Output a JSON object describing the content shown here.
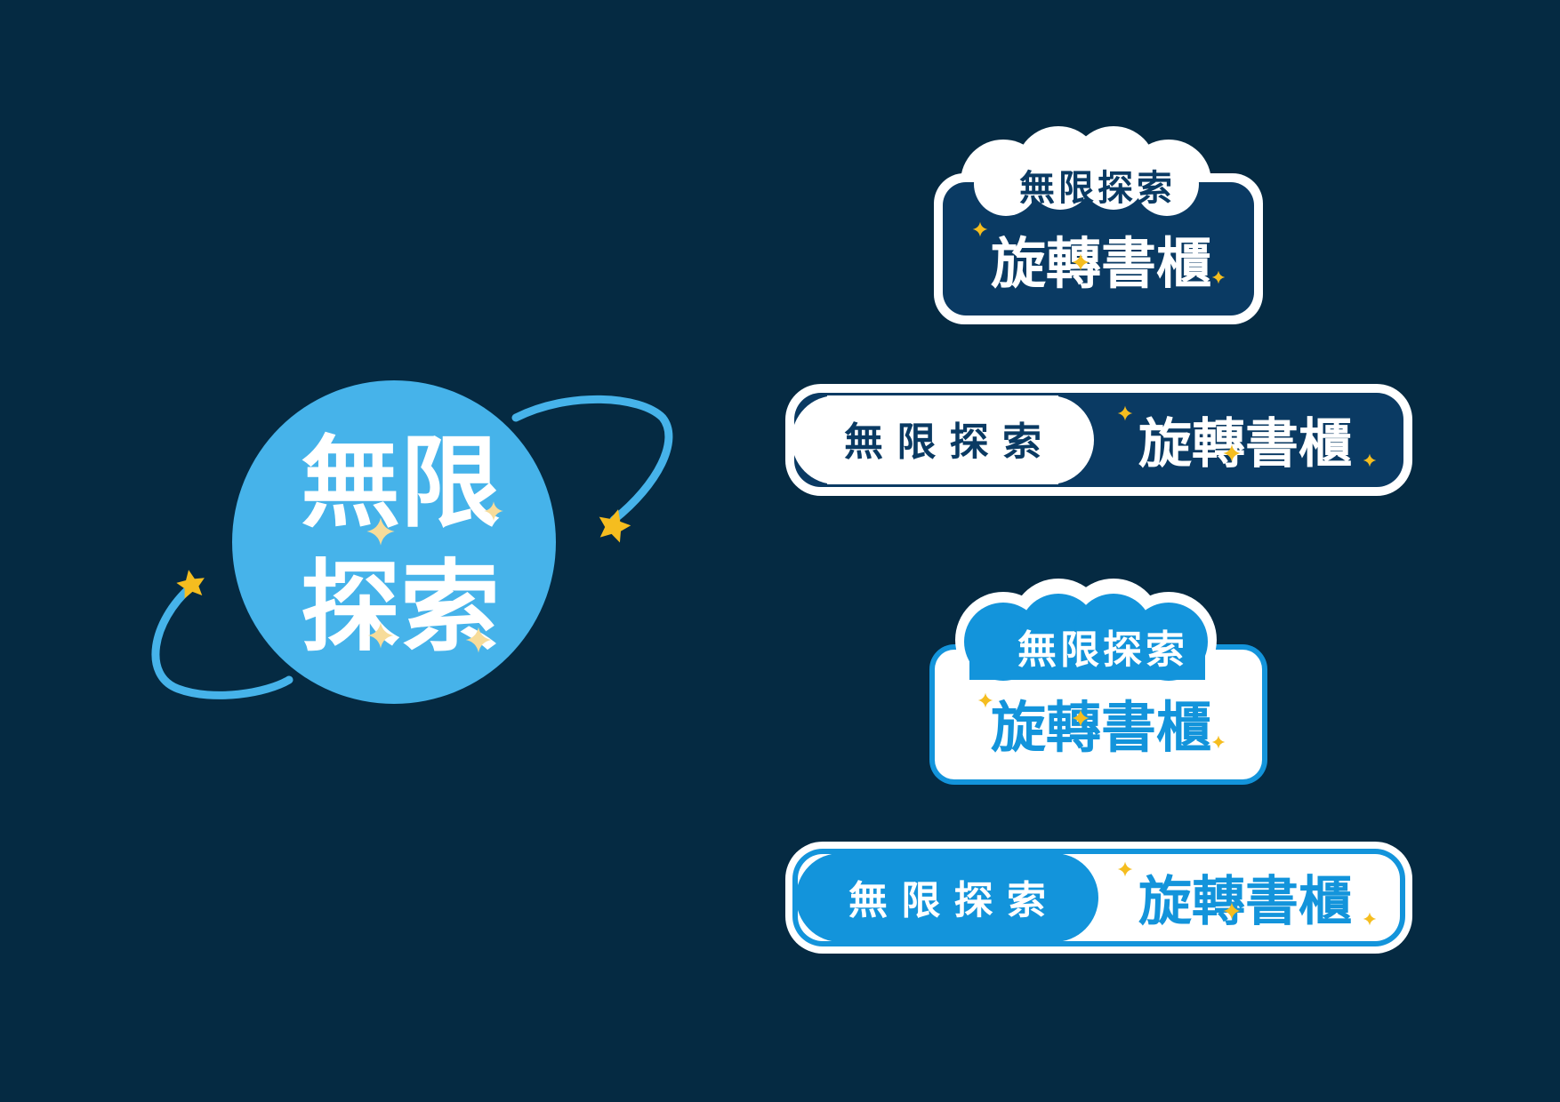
{
  "colors": {
    "background": "#052a42",
    "navy": "#0a3a63",
    "sky_blue": "#46b3ea",
    "bright_blue": "#1394db",
    "white": "#ffffff",
    "star_gold": "#f5bd1f",
    "sparkle_cream": "#f7dc9a"
  },
  "main_logo": {
    "line1": "無限",
    "line2": "探索"
  },
  "badge_navy_stacked": {
    "top": "無限探索",
    "bottom": "旋轉書櫃"
  },
  "badge_navy_inline": {
    "left": "無 限 探 索",
    "right": "旋轉書櫃"
  },
  "badge_blue_stacked": {
    "top": "無限探索",
    "bottom": "旋轉書櫃"
  },
  "badge_blue_inline": {
    "left": "無 限 探 索",
    "right": "旋轉書櫃"
  }
}
